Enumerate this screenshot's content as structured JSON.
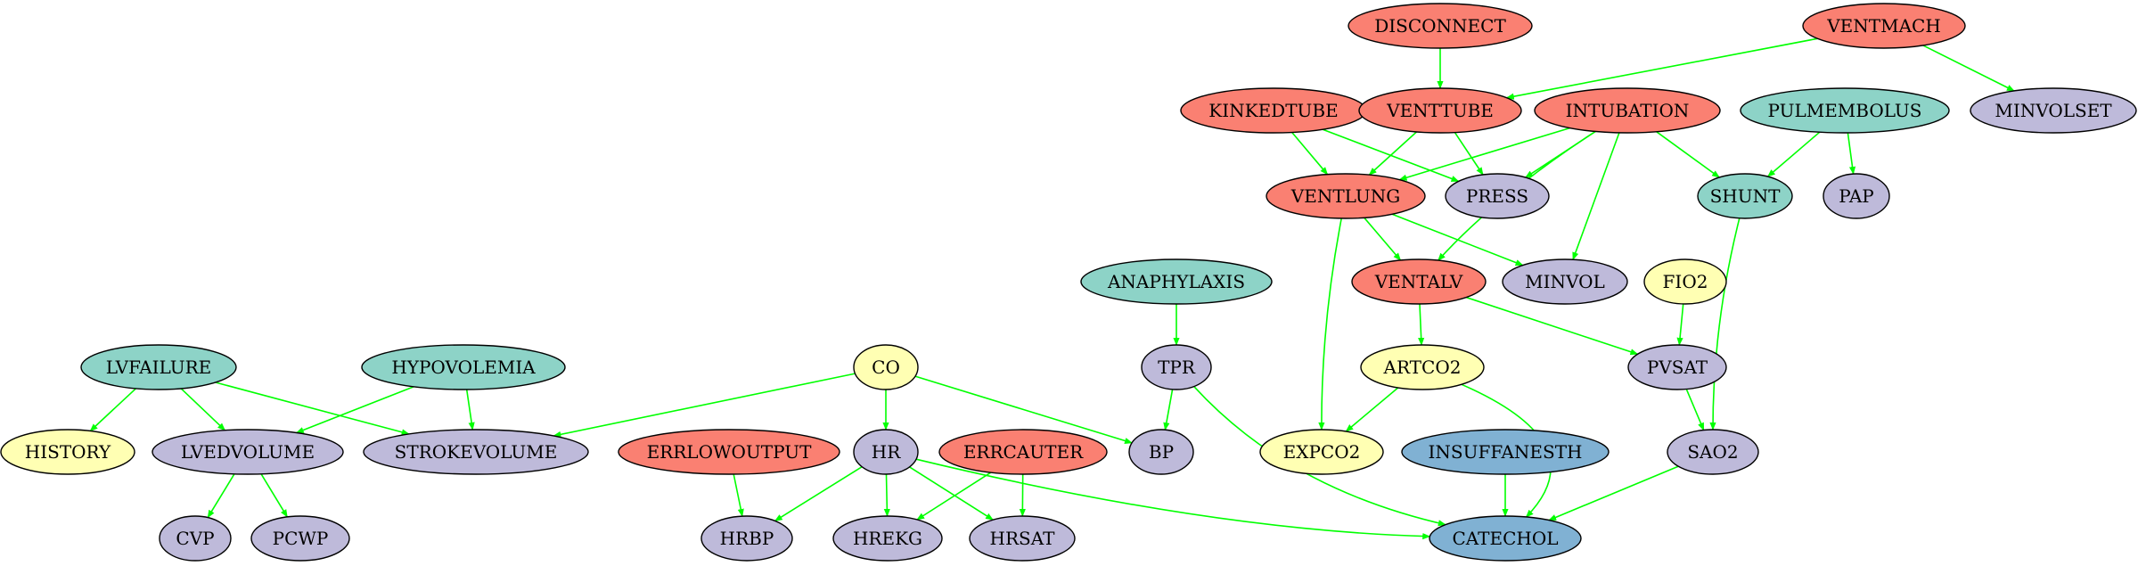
{
  "colors": {
    "red": "#fa8072",
    "teal": "#8dd3c7",
    "lavender": "#bebada",
    "yellow": "#ffffb3",
    "blue": "#80b1d3",
    "edge": "#00ff00"
  },
  "nodes": [
    {
      "id": "DISCONNECT",
      "label": "DISCONNECT",
      "color": "red"
    },
    {
      "id": "VENTMACH",
      "label": "VENTMACH",
      "color": "red"
    },
    {
      "id": "KINKEDTUBE",
      "label": "KINKEDTUBE",
      "color": "red"
    },
    {
      "id": "VENTTUBE",
      "label": "VENTTUBE",
      "color": "red"
    },
    {
      "id": "INTUBATION",
      "label": "INTUBATION",
      "color": "red"
    },
    {
      "id": "PULMEMBOLUS",
      "label": "PULMEMBOLUS",
      "color": "teal"
    },
    {
      "id": "MINVOLSET",
      "label": "MINVOLSET",
      "color": "lavender"
    },
    {
      "id": "VENTLUNG",
      "label": "VENTLUNG",
      "color": "red"
    },
    {
      "id": "PRESS",
      "label": "PRESS",
      "color": "lavender"
    },
    {
      "id": "SHUNT",
      "label": "SHUNT",
      "color": "teal"
    },
    {
      "id": "PAP",
      "label": "PAP",
      "color": "lavender"
    },
    {
      "id": "ANAPHYLAXIS",
      "label": "ANAPHYLAXIS",
      "color": "teal"
    },
    {
      "id": "VENTALV",
      "label": "VENTALV",
      "color": "red"
    },
    {
      "id": "MINVOL",
      "label": "MINVOL",
      "color": "lavender"
    },
    {
      "id": "FIO2",
      "label": "FIO2",
      "color": "yellow"
    },
    {
      "id": "LVFAILURE",
      "label": "LVFAILURE",
      "color": "teal"
    },
    {
      "id": "HYPOVOLEMIA",
      "label": "HYPOVOLEMIA",
      "color": "teal"
    },
    {
      "id": "CO",
      "label": "CO",
      "color": "yellow"
    },
    {
      "id": "TPR",
      "label": "TPR",
      "color": "lavender"
    },
    {
      "id": "ARTCO2",
      "label": "ARTCO2",
      "color": "yellow"
    },
    {
      "id": "PVSAT",
      "label": "PVSAT",
      "color": "lavender"
    },
    {
      "id": "HISTORY",
      "label": "HISTORY",
      "color": "yellow"
    },
    {
      "id": "LVEDVOLUME",
      "label": "LVEDVOLUME",
      "color": "lavender"
    },
    {
      "id": "STROKEVOLUME",
      "label": "STROKEVOLUME",
      "color": "lavender"
    },
    {
      "id": "ERRLOWOUTPUT",
      "label": "ERRLOWOUTPUT",
      "color": "red"
    },
    {
      "id": "HR",
      "label": "HR",
      "color": "lavender"
    },
    {
      "id": "ERRCAUTER",
      "label": "ERRCAUTER",
      "color": "red"
    },
    {
      "id": "BP",
      "label": "BP",
      "color": "lavender"
    },
    {
      "id": "EXPCO2",
      "label": "EXPCO2",
      "color": "yellow"
    },
    {
      "id": "INSUFFANESTH",
      "label": "INSUFFANESTH",
      "color": "blue"
    },
    {
      "id": "SAO2",
      "label": "SAO2",
      "color": "lavender"
    },
    {
      "id": "CVP",
      "label": "CVP",
      "color": "lavender"
    },
    {
      "id": "PCWP",
      "label": "PCWP",
      "color": "lavender"
    },
    {
      "id": "HRBP",
      "label": "HRBP",
      "color": "lavender"
    },
    {
      "id": "HREKG",
      "label": "HREKG",
      "color": "lavender"
    },
    {
      "id": "HRSAT",
      "label": "HRSAT",
      "color": "lavender"
    },
    {
      "id": "CATECHOL",
      "label": "CATECHOL",
      "color": "blue"
    }
  ],
  "edges": [
    [
      "DISCONNECT",
      "VENTTUBE"
    ],
    [
      "VENTMACH",
      "VENTTUBE"
    ],
    [
      "VENTMACH",
      "MINVOLSET"
    ],
    [
      "KINKEDTUBE",
      "VENTLUNG"
    ],
    [
      "KINKEDTUBE",
      "PRESS"
    ],
    [
      "VENTTUBE",
      "VENTLUNG"
    ],
    [
      "VENTTUBE",
      "PRESS"
    ],
    [
      "INTUBATION",
      "VENTLUNG"
    ],
    [
      "INTUBATION",
      "PRESS"
    ],
    [
      "INTUBATION",
      "SHUNT"
    ],
    [
      "INTUBATION",
      "VENTALV"
    ],
    [
      "INTUBATION",
      "MINVOL"
    ],
    [
      "PULMEMBOLUS",
      "SHUNT"
    ],
    [
      "PULMEMBOLUS",
      "PAP"
    ],
    [
      "VENTLUNG",
      "VENTALV"
    ],
    [
      "VENTLUNG",
      "MINVOL"
    ],
    [
      "VENTLUNG",
      "EXPCO2"
    ],
    [
      "SHUNT",
      "SAO2"
    ],
    [
      "ANAPHYLAXIS",
      "TPR"
    ],
    [
      "VENTALV",
      "ARTCO2"
    ],
    [
      "VENTALV",
      "PVSAT"
    ],
    [
      "FIO2",
      "PVSAT"
    ],
    [
      "LVFAILURE",
      "HISTORY"
    ],
    [
      "LVFAILURE",
      "LVEDVOLUME"
    ],
    [
      "LVFAILURE",
      "STROKEVOLUME"
    ],
    [
      "HYPOVOLEMIA",
      "LVEDVOLUME"
    ],
    [
      "HYPOVOLEMIA",
      "STROKEVOLUME"
    ],
    [
      "CO",
      "STROKEVOLUME"
    ],
    [
      "CO",
      "HR"
    ],
    [
      "CO",
      "BP"
    ],
    [
      "TPR",
      "BP"
    ],
    [
      "TPR",
      "CATECHOL"
    ],
    [
      "ARTCO2",
      "EXPCO2"
    ],
    [
      "ARTCO2",
      "CATECHOL"
    ],
    [
      "PVSAT",
      "SAO2"
    ],
    [
      "LVEDVOLUME",
      "CVP"
    ],
    [
      "LVEDVOLUME",
      "PCWP"
    ],
    [
      "ERRLOWOUTPUT",
      "HRBP"
    ],
    [
      "HR",
      "HRBP"
    ],
    [
      "HR",
      "HREKG"
    ],
    [
      "HR",
      "HRSAT"
    ],
    [
      "HR",
      "CATECHOL"
    ],
    [
      "ERRCAUTER",
      "HREKG"
    ],
    [
      "ERRCAUTER",
      "HRSAT"
    ],
    [
      "INSUFFANESTH",
      "CATECHOL"
    ],
    [
      "SAO2",
      "CATECHOL"
    ]
  ]
}
